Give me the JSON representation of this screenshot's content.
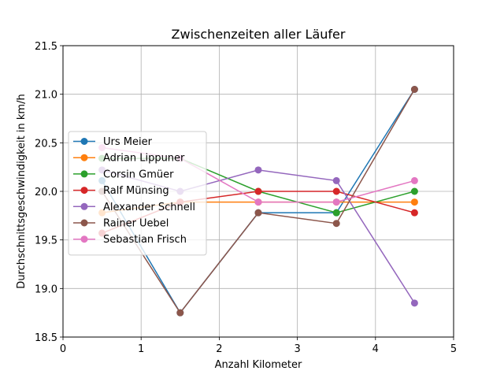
{
  "chart_data": {
    "type": "line",
    "title": "Zwischenzeiten aller Läufer",
    "xlabel": "Anzahl Kilometer",
    "ylabel": "Durchschnittsgeschwindigkeit in km/h",
    "xlim": [
      0,
      5
    ],
    "ylim": [
      18.5,
      21.5
    ],
    "xticks": [
      0,
      1,
      2,
      3,
      4,
      5
    ],
    "xtick_labels": [
      "0",
      "1",
      "2",
      "3",
      "4",
      "5"
    ],
    "yticks": [
      18.5,
      19.0,
      19.5,
      20.0,
      20.5,
      21.0,
      21.5
    ],
    "ytick_labels": [
      "18.5",
      "19.0",
      "19.5",
      "20.0",
      "20.5",
      "21.0",
      "21.5"
    ],
    "grid": true,
    "legend_position": "center-left",
    "x": [
      0.5,
      1.5,
      2.5,
      3.5,
      4.5
    ],
    "series": [
      {
        "name": "Urs Meier",
        "color": "#1f77b4",
        "values": [
          20.11,
          18.75,
          19.78,
          19.78,
          21.05
        ]
      },
      {
        "name": "Adrian Lippuner",
        "color": "#ff7f0e",
        "values": [
          19.78,
          19.89,
          19.89,
          19.89,
          19.89
        ]
      },
      {
        "name": "Corsin Gmüer",
        "color": "#2ca02c",
        "values": [
          20.34,
          20.34,
          20.0,
          19.78,
          20.0
        ]
      },
      {
        "name": "Ralf Münsing",
        "color": "#d62728",
        "values": [
          19.57,
          19.89,
          20.0,
          20.0,
          19.78
        ]
      },
      {
        "name": "Alexander Schnell",
        "color": "#9467bd",
        "values": [
          20.22,
          20.0,
          20.22,
          20.11,
          18.85
        ]
      },
      {
        "name": "Rainer Uebel",
        "color": "#8c564b",
        "values": [
          20.0,
          18.75,
          19.78,
          19.67,
          21.05
        ]
      },
      {
        "name": "Sebastian Frisch",
        "color": "#e377c2",
        "values": [
          20.45,
          20.34,
          19.89,
          19.89,
          20.11
        ]
      }
    ]
  }
}
